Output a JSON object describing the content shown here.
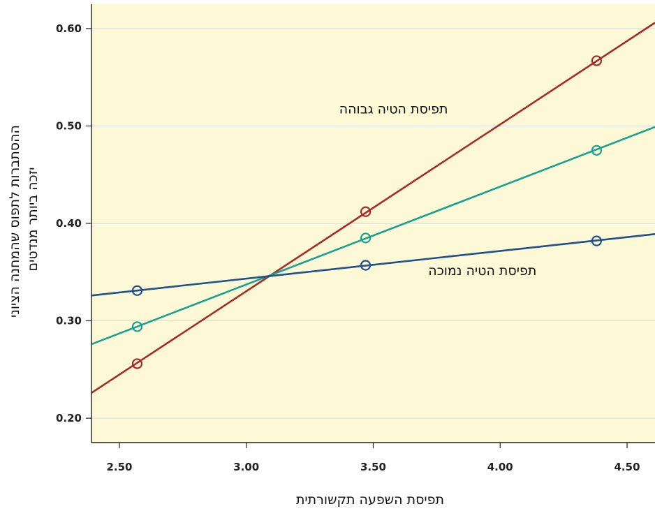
{
  "chart_data": {
    "type": "line",
    "xlabel": "תפיסת השפעה תקשורתית",
    "ylabel_lines": [
      "ההסתברות לתפוס שהמחנה הציוני",
      "יזכה ביותר מנדטים"
    ],
    "xlim": [
      2.39,
      4.61
    ],
    "ylim": [
      0.175,
      0.625
    ],
    "x_ticks": [
      {
        "value": 2.5,
        "label": "2.50"
      },
      {
        "value": 3.0,
        "label": "3.00"
      },
      {
        "value": 3.5,
        "label": "3.50"
      },
      {
        "value": 4.0,
        "label": "4.00"
      },
      {
        "value": 4.5,
        "label": "4.50"
      }
    ],
    "y_ticks": [
      {
        "value": 0.2,
        "label": "0.20"
      },
      {
        "value": 0.3,
        "label": "0.30"
      },
      {
        "value": 0.4,
        "label": "0.40"
      },
      {
        "value": 0.5,
        "label": "0.50"
      },
      {
        "value": 0.6,
        "label": "0.60"
      }
    ],
    "grid": "horizontal",
    "background": "#fdf9d6",
    "series": [
      {
        "key": "high",
        "color": "#a92828",
        "line": [
          {
            "x": 2.39,
            "y": 0.226
          },
          {
            "x": 4.61,
            "y": 0.606
          }
        ],
        "points": [
          {
            "x": 2.57,
            "y": 0.256
          },
          {
            "x": 3.47,
            "y": 0.412
          },
          {
            "x": 4.38,
            "y": 0.567
          }
        ]
      },
      {
        "key": "mid",
        "color": "#16a194",
        "line": [
          {
            "x": 2.39,
            "y": 0.276
          },
          {
            "x": 4.61,
            "y": 0.499
          }
        ],
        "points": [
          {
            "x": 2.57,
            "y": 0.294
          },
          {
            "x": 3.47,
            "y": 0.385
          },
          {
            "x": 4.38,
            "y": 0.475
          }
        ]
      },
      {
        "key": "low",
        "color": "#1f4f8c",
        "line": [
          {
            "x": 2.39,
            "y": 0.326
          },
          {
            "x": 4.61,
            "y": 0.389
          }
        ],
        "points": [
          {
            "x": 2.57,
            "y": 0.331
          },
          {
            "x": 3.47,
            "y": 0.357
          },
          {
            "x": 4.38,
            "y": 0.382
          }
        ]
      }
    ],
    "annotations": [
      {
        "text": "תפיסת הטיה גבוהה",
        "x": 3.58,
        "y": 0.513
      },
      {
        "text": "תפיסת הטיה נמוכה",
        "x": 3.93,
        "y": 0.347
      }
    ]
  }
}
